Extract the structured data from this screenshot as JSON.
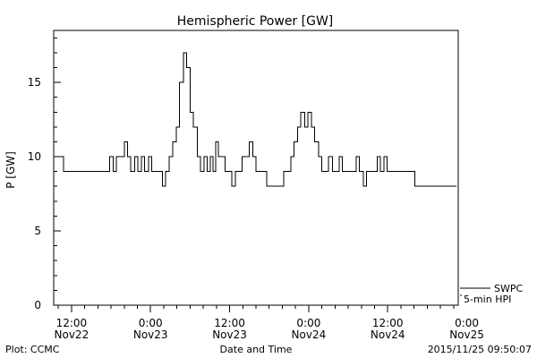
{
  "chart_data": {
    "type": "line",
    "title": "Hemispheric Power [GW]",
    "xlabel": "Date and Time",
    "ylabel": "P [GW]",
    "ylim": [
      0,
      18.5
    ],
    "y_ticks": [
      0,
      5,
      10,
      15
    ],
    "x_unit": "hours since 2015-11-22 00:00 UT",
    "xlim": [
      9.3,
      70.7
    ],
    "x_ticks": [
      {
        "x": 12,
        "line1": "12:00",
        "line2": "Nov22"
      },
      {
        "x": 24,
        "line1": "0:00",
        "line2": "Nov23"
      },
      {
        "x": 36,
        "line1": "12:00",
        "line2": "Nov23"
      },
      {
        "x": 48,
        "line1": "0:00",
        "line2": "Nov24"
      },
      {
        "x": 60,
        "line1": "12:00",
        "line2": "Nov24"
      },
      {
        "x": 72,
        "line1": "0:00",
        "line2": "Nov25"
      }
    ],
    "grid": false,
    "legend_position": "bottom-right",
    "series": [
      {
        "name": "SWPC 5-min HPI",
        "color": "#000000",
        "x": [
          9.6,
          10.0,
          10.8,
          17.3,
          17.8,
          18.3,
          18.8,
          19.4,
          20.0,
          20.5,
          21.0,
          21.6,
          22.1,
          22.6,
          23.1,
          23.7,
          24.2,
          24.7,
          25.3,
          25.8,
          26.3,
          26.8,
          27.4,
          27.9,
          28.4,
          29.0,
          29.5,
          30.0,
          30.5,
          31.1,
          31.6,
          32.1,
          32.6,
          33.1,
          33.5,
          33.9,
          34.3,
          34.8,
          35.3,
          35.8,
          36.3,
          36.9,
          37.4,
          37.9,
          38.4,
          39.0,
          39.5,
          40.0,
          40.5,
          41.1,
          41.6,
          42.1,
          42.6,
          43.2,
          43.7,
          44.2,
          44.7,
          45.3,
          45.8,
          46.3,
          46.8,
          47.4,
          47.9,
          48.4,
          48.9,
          49.5,
          50.0,
          50.5,
          51.0,
          51.6,
          52.1,
          52.6,
          53.1,
          53.6,
          54.2,
          54.7,
          55.2,
          55.7,
          56.3,
          56.8,
          57.3,
          57.8,
          58.4,
          58.9,
          59.4,
          59.9,
          60.5,
          61.0,
          61.5,
          62.0,
          62.6,
          63.1,
          63.6,
          64.1,
          64.7,
          65.2,
          65.7,
          66.2,
          66.8,
          67.3,
          67.8,
          68.3,
          68.9,
          69.4,
          69.9,
          70.4
        ],
        "y": [
          10,
          10,
          9,
          9,
          10,
          9,
          10,
          10,
          11,
          10,
          9,
          10,
          9,
          10,
          9,
          10,
          9,
          9,
          9,
          8,
          9,
          10,
          11,
          12,
          15,
          17,
          16,
          13,
          12,
          10,
          9,
          10,
          9,
          10,
          9,
          11,
          10,
          10,
          9,
          9,
          8,
          9,
          9,
          10,
          10,
          11,
          10,
          9,
          9,
          9,
          8,
          8,
          8,
          8,
          8,
          9,
          9,
          10,
          11,
          12,
          13,
          12,
          13,
          12,
          11,
          10,
          9,
          9,
          10,
          9,
          9,
          10,
          9,
          9,
          9,
          9,
          10,
          9,
          8,
          9,
          9,
          9,
          10,
          9,
          10,
          9,
          9,
          9,
          9,
          9,
          9,
          9,
          9,
          8,
          8,
          8,
          8,
          8,
          8,
          8,
          8,
          8,
          8,
          8,
          8,
          8
        ]
      }
    ],
    "legend": [
      "SWPC",
      "5-min HPI"
    ]
  },
  "footer": {
    "left": "Plot: CCMC",
    "center": "Date and Time",
    "right": "2015/11/25 09:50:07"
  }
}
